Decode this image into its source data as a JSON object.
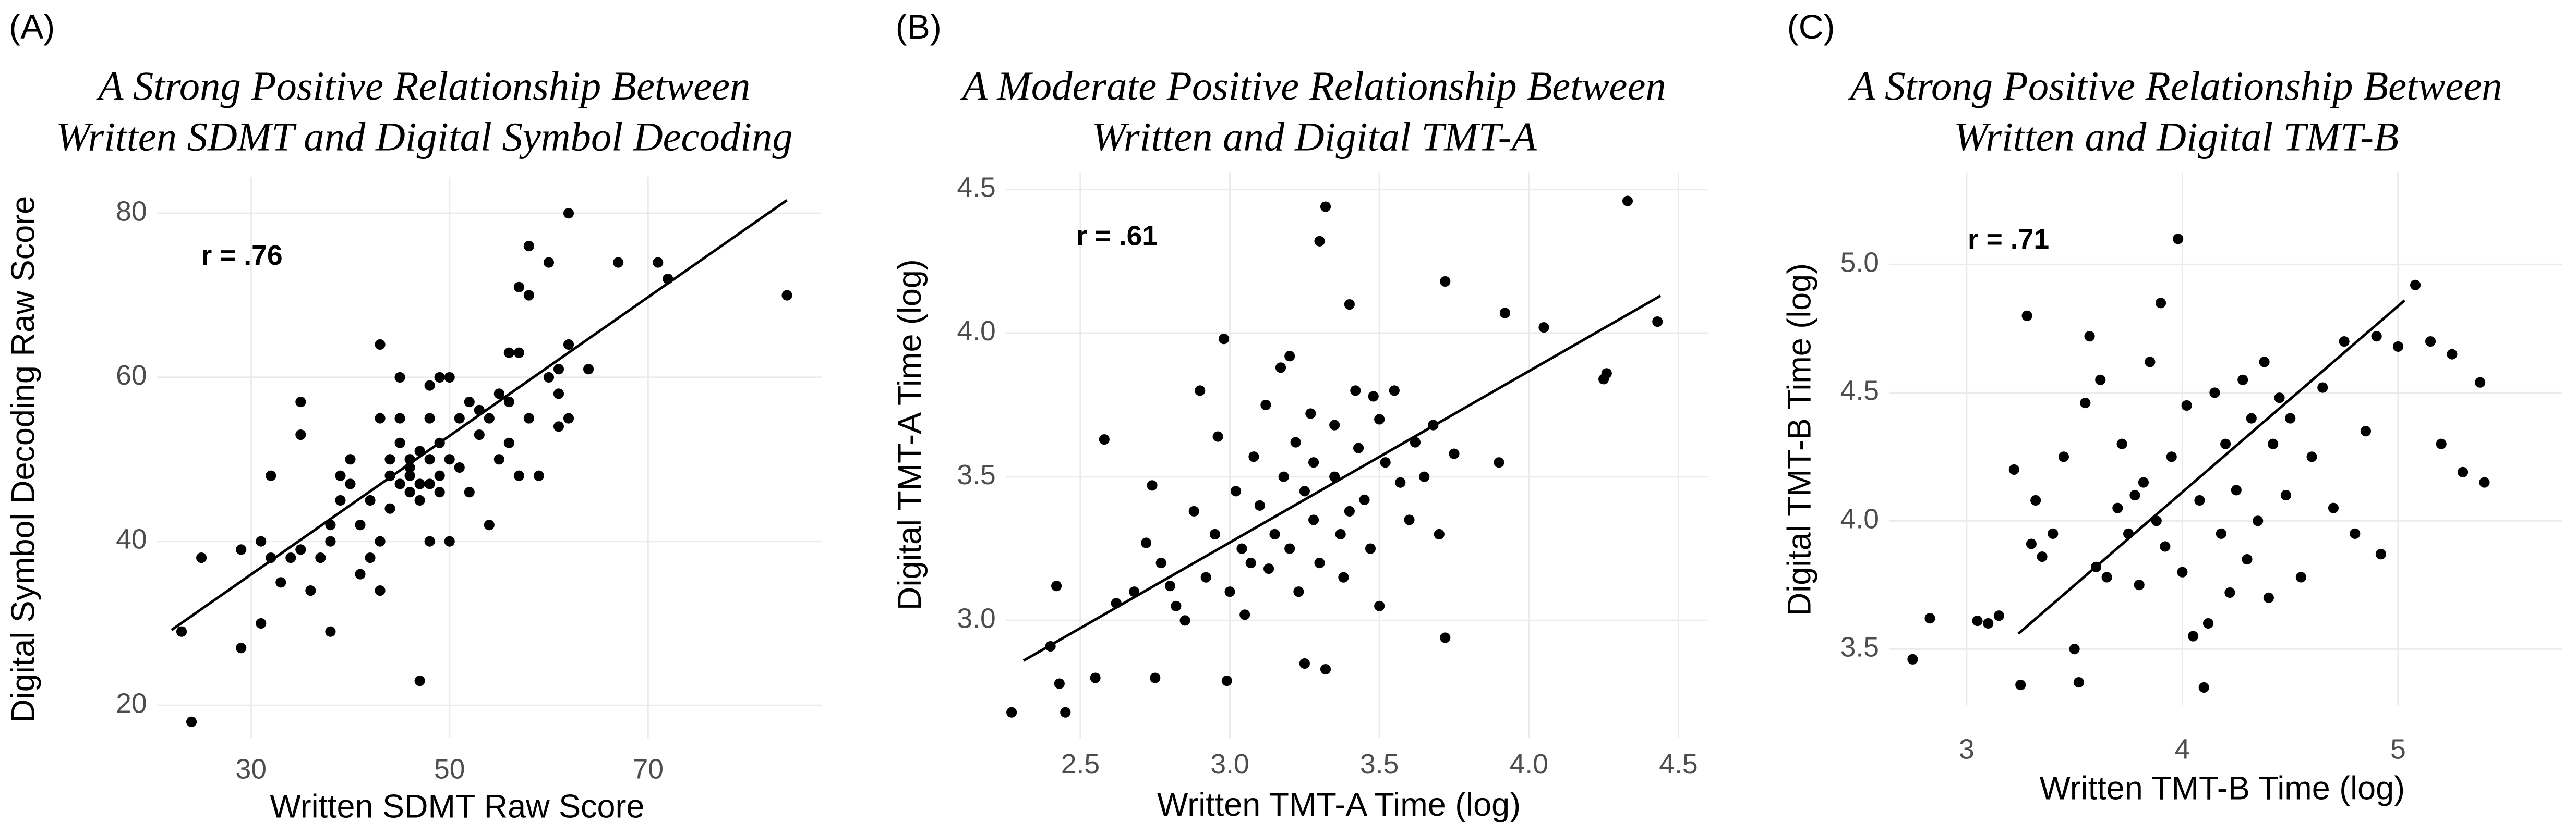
{
  "chart_data": [
    {
      "type": "scatter",
      "panel_label": "(A)",
      "title": [
        "A Strong Positive Relationship Between",
        "Written SDMT and Digital Symbol Decoding"
      ],
      "xlabel": "Written SDMT Raw Score",
      "ylabel": "Digital Symbol Decoding Raw Score",
      "annotation": "r = .76",
      "xlim": [
        20.5,
        87.5
      ],
      "ylim": [
        16,
        84.4
      ],
      "xticks": [
        30,
        50,
        70
      ],
      "yticks": [
        20,
        40,
        60,
        80
      ],
      "grid": true,
      "series": [
        {
          "color": "#000000",
          "x": [
            23,
            24,
            25,
            29,
            29,
            31,
            31,
            32,
            32,
            33,
            34,
            35,
            35,
            35,
            36,
            37,
            38,
            38,
            38,
            39,
            39,
            40,
            40,
            41,
            41,
            42,
            42,
            43,
            43,
            43,
            43,
            44,
            44,
            44,
            45,
            45,
            45,
            45,
            46,
            46,
            46,
            46,
            47,
            47,
            47,
            47,
            48,
            48,
            48,
            48,
            48,
            49,
            49,
            49,
            49,
            50,
            50,
            50,
            51,
            51,
            52,
            52,
            53,
            53,
            54,
            54,
            55,
            55,
            56,
            56,
            56,
            57,
            57,
            57,
            58,
            58,
            58,
            59,
            60,
            60,
            61,
            61,
            61,
            62,
            62,
            62,
            64,
            67,
            71,
            72,
            84
          ],
          "values": [
            29,
            18,
            38,
            27,
            39,
            30,
            40,
            38,
            48,
            35,
            38,
            39,
            53,
            57,
            34,
            38,
            29,
            40,
            42,
            45,
            48,
            50,
            47,
            42,
            36,
            45,
            38,
            40,
            34,
            55,
            64,
            44,
            48,
            50,
            47,
            52,
            55,
            60,
            46,
            48,
            50,
            49,
            51,
            47,
            45,
            23,
            55,
            50,
            40,
            59,
            47,
            48,
            60,
            52,
            46,
            60,
            40,
            50,
            49,
            55,
            57,
            46,
            53,
            56,
            42,
            55,
            58,
            50,
            57,
            63,
            52,
            71,
            63,
            48,
            76,
            70,
            55,
            48,
            74,
            60,
            61,
            54,
            58,
            80,
            64,
            55,
            61,
            74,
            74,
            72,
            70
          ]
        }
      ],
      "fit_line": {
        "color": "#000000",
        "x": [
          22,
          84
        ],
        "values": [
          29.2,
          81.6
        ]
      }
    },
    {
      "type": "scatter",
      "panel_label": "(B)",
      "title": [
        "A Moderate Positive Relationship Between",
        "Written and Digital TMT-A"
      ],
      "xlabel": "Written TMT-A Time (log)",
      "ylabel": "Digital TMT-A Time (log)",
      "annotation": "r = .61",
      "xlim": [
        2.25,
        4.6
      ],
      "ylim": [
        2.59,
        4.56
      ],
      "xticks": [
        2.5,
        {
          "value": 3,
          "label": "3.0"
        },
        3.5,
        {
          "value": 4,
          "label": "4.0"
        },
        4.5
      ],
      "yticks": [
        {
          "value": 3,
          "label": "3.0"
        },
        3.5,
        {
          "value": 4,
          "label": "4.0"
        },
        4.5
      ],
      "grid": true,
      "series": [
        {
          "color": "#000000",
          "x": [
            2.27,
            2.4,
            2.42,
            2.43,
            2.45,
            2.55,
            2.58,
            2.62,
            2.68,
            2.72,
            2.74,
            2.75,
            2.77,
            2.8,
            2.82,
            2.85,
            2.88,
            2.9,
            2.92,
            2.95,
            2.96,
            2.98,
            2.99,
            3.0,
            3.02,
            3.04,
            3.05,
            3.07,
            3.08,
            3.1,
            3.12,
            3.13,
            3.15,
            3.17,
            3.18,
            3.2,
            3.2,
            3.22,
            3.23,
            3.25,
            3.25,
            3.27,
            3.28,
            3.28,
            3.3,
            3.3,
            3.32,
            3.32,
            3.35,
            3.35,
            3.37,
            3.38,
            3.4,
            3.4,
            3.42,
            3.43,
            3.45,
            3.47,
            3.48,
            3.5,
            3.5,
            3.52,
            3.55,
            3.57,
            3.6,
            3.62,
            3.65,
            3.68,
            3.7,
            3.72,
            3.72,
            3.75,
            3.9,
            3.92,
            4.05,
            4.25,
            4.26,
            4.33,
            4.43
          ],
          "values": [
            2.68,
            2.91,
            3.12,
            2.78,
            2.68,
            2.8,
            3.63,
            3.06,
            3.1,
            3.27,
            3.47,
            2.8,
            3.2,
            3.12,
            3.05,
            3.0,
            3.38,
            3.8,
            3.15,
            3.3,
            3.64,
            3.98,
            2.79,
            3.1,
            3.45,
            3.25,
            3.02,
            3.2,
            3.57,
            3.4,
            3.75,
            3.18,
            3.3,
            3.88,
            3.5,
            3.25,
            3.92,
            3.62,
            3.1,
            3.45,
            2.85,
            3.72,
            3.35,
            3.55,
            4.32,
            3.2,
            4.44,
            2.83,
            3.68,
            3.5,
            3.3,
            3.15,
            4.1,
            3.38,
            3.8,
            3.6,
            3.42,
            3.25,
            3.78,
            3.7,
            3.05,
            3.55,
            3.8,
            3.48,
            3.35,
            3.62,
            3.5,
            3.68,
            3.3,
            4.18,
            2.94,
            3.58,
            3.55,
            4.07,
            4.02,
            3.84,
            3.86,
            4.46,
            4.04
          ]
        }
      ],
      "fit_line": {
        "color": "#000000",
        "x": [
          2.31,
          4.44
        ],
        "values": [
          2.86,
          4.13
        ]
      }
    },
    {
      "type": "scatter",
      "panel_label": "(C)",
      "title": [
        "A Strong Positive Relationship Between",
        "Written and Digital TMT-B"
      ],
      "xlabel": "Written TMT-B Time (log)",
      "ylabel": "Digital TMT-B Time (log)",
      "annotation": "r = .71",
      "xlim": [
        2.64,
        5.76
      ],
      "ylim": [
        3.28,
        5.36
      ],
      "xticks": [
        3,
        4,
        5
      ],
      "yticks": [
        3.5,
        {
          "value": 4,
          "label": "4.0"
        },
        4.5,
        {
          "value": 5,
          "label": "5.0"
        }
      ],
      "grid": true,
      "series": [
        {
          "color": "#000000",
          "x": [
            2.75,
            2.83,
            3.05,
            3.1,
            3.15,
            3.22,
            3.25,
            3.28,
            3.3,
            3.32,
            3.35,
            3.4,
            3.45,
            3.5,
            3.52,
            3.55,
            3.57,
            3.6,
            3.62,
            3.65,
            3.7,
            3.72,
            3.75,
            3.78,
            3.8,
            3.82,
            3.85,
            3.88,
            3.9,
            3.92,
            3.95,
            3.98,
            4.0,
            4.02,
            4.05,
            4.08,
            4.1,
            4.12,
            4.15,
            4.18,
            4.2,
            4.22,
            4.25,
            4.28,
            4.3,
            4.32,
            4.35,
            4.38,
            4.4,
            4.42,
            4.45,
            4.48,
            4.5,
            4.55,
            4.6,
            4.65,
            4.7,
            4.75,
            4.8,
            4.85,
            4.9,
            4.92,
            5.0,
            5.08,
            5.15,
            5.2,
            5.25,
            5.3,
            5.4,
            5.38
          ],
          "values": [
            3.46,
            3.62,
            3.61,
            3.6,
            3.63,
            4.2,
            3.36,
            4.8,
            3.91,
            4.08,
            3.86,
            3.95,
            4.25,
            3.5,
            3.37,
            4.46,
            4.72,
            3.82,
            4.55,
            3.78,
            4.05,
            4.3,
            3.95,
            4.1,
            3.75,
            4.15,
            4.62,
            4.0,
            4.85,
            3.9,
            4.25,
            5.1,
            3.8,
            4.45,
            3.55,
            4.08,
            3.35,
            3.6,
            4.5,
            3.95,
            4.3,
            3.72,
            4.12,
            4.55,
            3.85,
            4.4,
            4.0,
            4.62,
            3.7,
            4.3,
            4.48,
            4.1,
            4.4,
            3.78,
            4.25,
            4.52,
            4.05,
            4.7,
            3.95,
            4.35,
            4.72,
            3.87,
            4.68,
            4.92,
            4.7,
            4.3,
            4.65,
            4.19,
            4.15,
            4.54
          ]
        }
      ],
      "fit_line": {
        "color": "#000000",
        "x": [
          3.24,
          5.03
        ],
        "values": [
          3.56,
          4.86
        ]
      }
    }
  ]
}
